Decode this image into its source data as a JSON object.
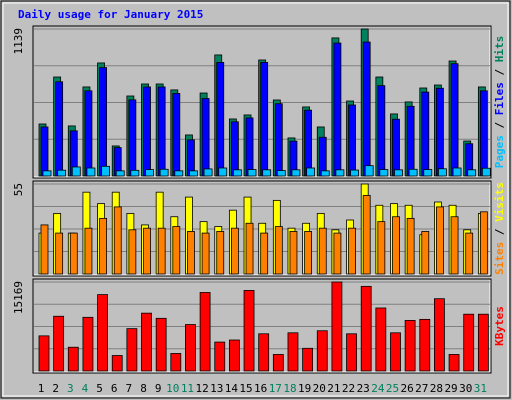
{
  "chart_data": [
    {
      "type": "bar",
      "title": "Daily usage for January 2015",
      "legend_separator": "/",
      "series": [
        {
          "name": "Hits",
          "color": "#00805c",
          "values": [
            403,
            767,
            388,
            690,
            876,
            233,
            620,
            713,
            713,
            667,
            318,
            643,
            938,
            442,
            473,
            899,
            589,
            295,
            535,
            380,
            1070,
            581,
            1139,
            767,
            481,
            574,
            682,
            705,
            891,
            271,
            690
          ]
        },
        {
          "name": "Files",
          "color": "#0000ff",
          "values": [
            380,
            730,
            350,
            660,
            840,
            220,
            590,
            690,
            690,
            640,
            280,
            600,
            880,
            420,
            450,
            880,
            560,
            270,
            510,
            300,
            1030,
            550,
            1038,
            700,
            440,
            540,
            650,
            680,
            870,
            250,
            660
          ]
        },
        {
          "name": "Pages",
          "color": "#00c0ff",
          "values": [
            40,
            45,
            70,
            62,
            75,
            40,
            44,
            50,
            52,
            40,
            40,
            55,
            62,
            48,
            50,
            48,
            42,
            48,
            62,
            40,
            48,
            46,
            80,
            50,
            48,
            52,
            50,
            56,
            62,
            48,
            60
          ]
        }
      ],
      "ylim": [
        0,
        1139
      ],
      "yticks": [
        1139
      ]
    },
    {
      "type": "bar",
      "legend_separator": "/",
      "series": [
        {
          "name": "Visits",
          "color": "#ffff00",
          "values": [
            25,
            37,
            25,
            50,
            43,
            50,
            37,
            30,
            50,
            35,
            47,
            32,
            29,
            39,
            47,
            31,
            45,
            28,
            31,
            37,
            27,
            33,
            55,
            42,
            43,
            42,
            24,
            44,
            42,
            27,
            37
          ]
        },
        {
          "name": "Sites",
          "color": "#ff8000",
          "values": [
            30,
            25,
            25,
            28,
            34,
            41,
            27,
            28,
            28,
            29,
            26,
            25,
            26,
            28,
            31,
            25,
            29,
            26,
            26,
            28,
            25,
            28,
            48,
            32,
            35,
            34,
            26,
            41,
            35,
            25,
            38
          ]
        }
      ],
      "ylim": [
        0,
        55
      ],
      "yticks": [
        55
      ]
    },
    {
      "type": "bar",
      "categories": [
        "1",
        "2",
        "3",
        "4",
        "5",
        "6",
        "7",
        "8",
        "9",
        "10",
        "11",
        "12",
        "13",
        "14",
        "15",
        "16",
        "17",
        "18",
        "19",
        "20",
        "21",
        "22",
        "23",
        "24",
        "25",
        "26",
        "27",
        "28",
        "29",
        "30",
        "31"
      ],
      "category_colors": [
        "#000000",
        "#000000",
        "#00805c",
        "#00805c",
        "#000000",
        "#000000",
        "#000000",
        "#000000",
        "#000000",
        "#00805c",
        "#00805c",
        "#000000",
        "#000000",
        "#000000",
        "#000000",
        "#000000",
        "#00805c",
        "#00805c",
        "#000000",
        "#000000",
        "#000000",
        "#000000",
        "#000000",
        "#00805c",
        "#00805c",
        "#000000",
        "#000000",
        "#000000",
        "#000000",
        "#000000",
        "#00805c"
      ],
      "series": [
        {
          "name": "KBytes",
          "color": "#ff0000",
          "values": [
            5990,
            9330,
            4050,
            9150,
            13020,
            2640,
            7220,
            9860,
            8980,
            2990,
            7920,
            13380,
            4930,
            5280,
            13730,
            6340,
            2820,
            6510,
            3870,
            6860,
            15169,
            6340,
            14430,
            10740,
            6510,
            8620,
            8800,
            12320,
            2820,
            9680,
            9680
          ]
        }
      ],
      "ylim": [
        0,
        15169
      ],
      "yticks": [
        15169
      ]
    }
  ]
}
